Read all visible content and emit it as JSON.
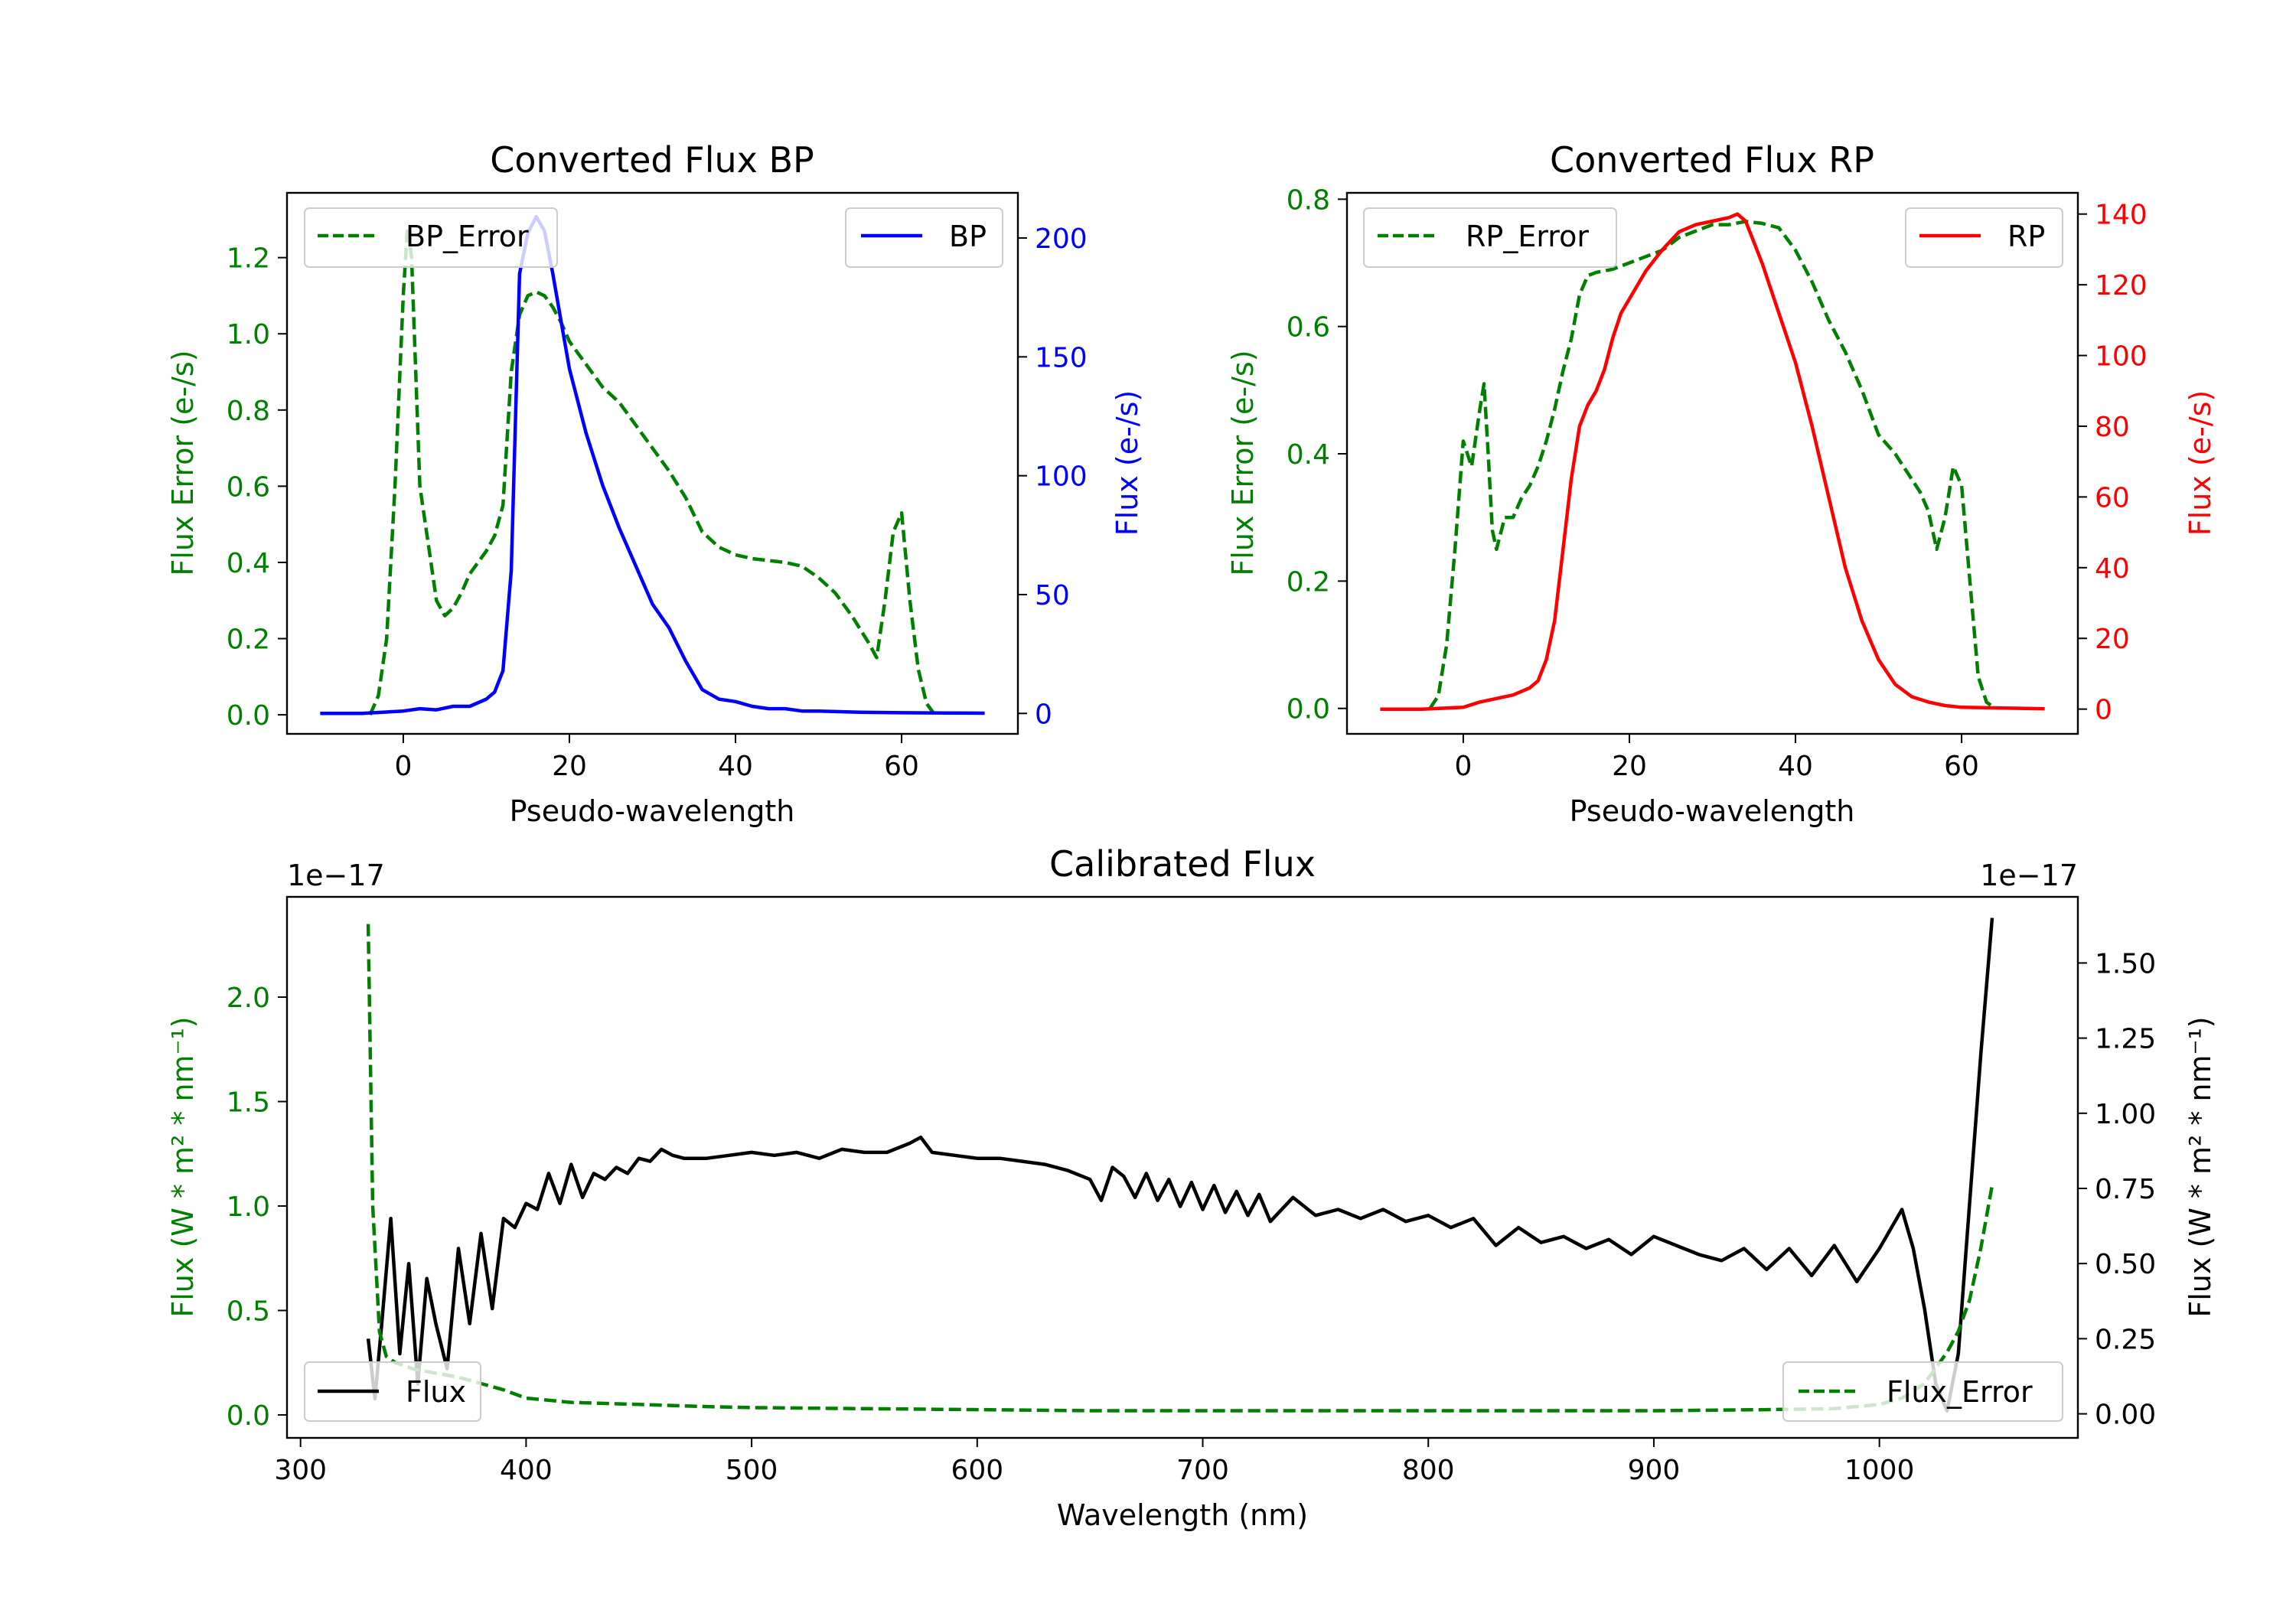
{
  "figure": {
    "colors": {
      "green": "#008000",
      "blue": "#0000ff",
      "red": "#ff0000",
      "black": "#000000"
    }
  },
  "chart_data": [
    {
      "id": "bp",
      "type": "line",
      "title": "Converted Flux BP",
      "xlabel": "Pseudo-wavelength",
      "ylabel_left": "Flux Error (e-/s)",
      "ylabel_right": "Flux (e-/s)",
      "xlim": [
        -14,
        74
      ],
      "ylim_left": [
        -0.05,
        1.37
      ],
      "ylim_right": [
        -8.6,
        219
      ],
      "xticks": [
        0,
        20,
        40,
        60
      ],
      "xtick_labels": [
        "0",
        "20",
        "40",
        "60"
      ],
      "yticks_left": [
        0.0,
        0.2,
        0.4,
        0.6,
        0.8,
        1.0,
        1.2
      ],
      "ytick_labels_left": [
        "0.0",
        "0.2",
        "0.4",
        "0.6",
        "0.8",
        "1.0",
        "1.2"
      ],
      "yticks_right": [
        0,
        50,
        100,
        150,
        200
      ],
      "ytick_labels_right": [
        "0",
        "50",
        "100",
        "150",
        "200"
      ],
      "series": [
        {
          "name": "BP_Error",
          "axis": "left",
          "color": "#008000",
          "style": "dashed",
          "x": [
            -4,
            -3,
            -2,
            -1,
            0,
            0.5,
            1,
            1.5,
            2,
            3,
            4,
            5,
            6,
            7,
            8,
            9,
            10,
            11,
            12,
            13,
            14,
            15,
            16,
            17,
            18,
            19,
            20,
            22,
            24,
            26,
            28,
            30,
            32,
            34,
            36,
            38,
            40,
            42,
            44,
            46,
            48,
            50,
            52,
            54,
            56,
            57,
            58,
            59,
            60,
            61,
            62,
            63,
            64
          ],
          "y": [
            0.0,
            0.05,
            0.2,
            0.6,
            1.1,
            1.28,
            1.2,
            0.9,
            0.6,
            0.45,
            0.3,
            0.26,
            0.28,
            0.32,
            0.37,
            0.4,
            0.43,
            0.47,
            0.55,
            0.9,
            1.05,
            1.1,
            1.11,
            1.1,
            1.07,
            1.03,
            0.98,
            0.92,
            0.86,
            0.82,
            0.76,
            0.7,
            0.64,
            0.57,
            0.48,
            0.44,
            0.42,
            0.41,
            0.405,
            0.4,
            0.39,
            0.36,
            0.32,
            0.26,
            0.19,
            0.15,
            0.3,
            0.48,
            0.53,
            0.3,
            0.12,
            0.03,
            0.0
          ]
        },
        {
          "name": "BP",
          "axis": "right",
          "color": "#0000ff",
          "style": "solid",
          "x": [
            -10,
            -5,
            0,
            2,
            4,
            6,
            8,
            10,
            11,
            12,
            13,
            14,
            15,
            16,
            17,
            18,
            19,
            20,
            22,
            24,
            26,
            28,
            30,
            32,
            34,
            36,
            38,
            40,
            42,
            44,
            46,
            48,
            50,
            55,
            60,
            65,
            70
          ],
          "y": [
            0,
            0,
            1,
            2,
            1.5,
            3,
            3,
            6,
            9,
            18,
            60,
            185,
            202,
            209,
            203,
            185,
            165,
            145,
            118,
            96,
            78,
            62,
            46,
            36,
            22,
            10,
            6,
            5,
            3,
            2,
            2,
            1,
            1,
            0.5,
            0.3,
            0.2,
            0.1
          ]
        }
      ],
      "legend": [
        {
          "label": "BP_Error",
          "placement": "upper-left"
        },
        {
          "label": "BP",
          "placement": "upper-right"
        }
      ]
    },
    {
      "id": "rp",
      "type": "line",
      "title": "Converted Flux RP",
      "xlabel": "Pseudo-wavelength",
      "ylabel_left": "Flux Error (e-/s)",
      "ylabel_right": "Flux (e-/s)",
      "xlim": [
        -14,
        74
      ],
      "ylim_left": [
        -0.04,
        0.81
      ],
      "ylim_right": [
        -7,
        146
      ],
      "xticks": [
        0,
        20,
        40,
        60
      ],
      "xtick_labels": [
        "0",
        "20",
        "40",
        "60"
      ],
      "yticks_left": [
        0.0,
        0.2,
        0.4,
        0.6,
        0.8
      ],
      "ytick_labels_left": [
        "0.0",
        "0.2",
        "0.4",
        "0.6",
        "0.8"
      ],
      "yticks_right": [
        0,
        20,
        40,
        60,
        80,
        100,
        120,
        140
      ],
      "ytick_labels_right": [
        "0",
        "20",
        "40",
        "60",
        "80",
        "100",
        "120",
        "140"
      ],
      "series": [
        {
          "name": "RP_Error",
          "axis": "left",
          "color": "#008000",
          "style": "dashed",
          "x": [
            -4,
            -3,
            -2,
            -1,
            0,
            1,
            2,
            2.5,
            3,
            3.5,
            4,
            5,
            6,
            7,
            8,
            9,
            10,
            11,
            12,
            13,
            14,
            15,
            16,
            18,
            20,
            22,
            24,
            26,
            28,
            30,
            32,
            34,
            36,
            38,
            40,
            42,
            44,
            46,
            48,
            50,
            52,
            54,
            55,
            56,
            57,
            58,
            59,
            60,
            61,
            62,
            63,
            64
          ],
          "y": [
            0.0,
            0.02,
            0.1,
            0.25,
            0.42,
            0.38,
            0.47,
            0.51,
            0.4,
            0.28,
            0.25,
            0.3,
            0.3,
            0.33,
            0.35,
            0.38,
            0.42,
            0.47,
            0.53,
            0.58,
            0.65,
            0.68,
            0.685,
            0.69,
            0.7,
            0.71,
            0.72,
            0.74,
            0.75,
            0.76,
            0.76,
            0.765,
            0.762,
            0.755,
            0.72,
            0.67,
            0.61,
            0.56,
            0.5,
            0.43,
            0.4,
            0.36,
            0.34,
            0.31,
            0.25,
            0.3,
            0.38,
            0.35,
            0.2,
            0.05,
            0.01,
            0.0
          ]
        },
        {
          "name": "RP",
          "axis": "right",
          "color": "#ff0000",
          "style": "solid",
          "x": [
            -10,
            -5,
            0,
            2,
            4,
            6,
            8,
            9,
            10,
            11,
            12,
            13,
            14,
            15,
            16,
            17,
            18,
            19,
            20,
            22,
            24,
            26,
            28,
            30,
            32,
            33,
            34,
            35,
            36,
            38,
            40,
            42,
            44,
            46,
            48,
            50,
            52,
            54,
            56,
            58,
            60,
            65,
            70
          ],
          "y": [
            0,
            0,
            0.5,
            2,
            3,
            4,
            6,
            8,
            14,
            25,
            45,
            65,
            80,
            86,
            90,
            96,
            105,
            112,
            116,
            124,
            130,
            135,
            137,
            138,
            139,
            140,
            138,
            132,
            126,
            112,
            98,
            80,
            60,
            40,
            25,
            14,
            7,
            3.5,
            2,
            1,
            0.5,
            0.3,
            0.1
          ]
        }
      ],
      "legend": [
        {
          "label": "RP_Error",
          "placement": "upper-left"
        },
        {
          "label": "RP",
          "placement": "upper-right"
        }
      ]
    },
    {
      "id": "cal",
      "type": "line",
      "title": "Calibrated Flux",
      "xlabel": "Wavelength (nm)",
      "ylabel_left": "Flux (W * m² * nm⁻¹)",
      "ylabel_right": "Flux (W * m² * nm⁻¹)",
      "offset_left": "1e−17",
      "offset_right": "1e−17",
      "xlim": [
        294,
        1088
      ],
      "ylim_left": [
        -0.11,
        2.48
      ],
      "ylim_right": [
        -0.08,
        1.72
      ],
      "xticks": [
        300,
        400,
        500,
        600,
        700,
        800,
        900,
        1000
      ],
      "xtick_labels": [
        "300",
        "400",
        "500",
        "600",
        "700",
        "800",
        "900",
        "1000"
      ],
      "yticks_left": [
        0.0,
        0.5,
        1.0,
        1.5,
        2.0
      ],
      "ytick_labels_left": [
        "0.0",
        "0.5",
        "1.0",
        "1.5",
        "2.0"
      ],
      "yticks_right": [
        0.0,
        0.25,
        0.5,
        0.75,
        1.0,
        1.25,
        1.5
      ],
      "ytick_labels_right": [
        "0.00",
        "0.25",
        "0.50",
        "0.75",
        "1.00",
        "1.25",
        "1.50"
      ],
      "series": [
        {
          "name": "Flux",
          "axis": "right",
          "color": "#000000",
          "style": "solid",
          "x": [
            330,
            333,
            336,
            340,
            344,
            348,
            352,
            356,
            360,
            365,
            370,
            375,
            380,
            385,
            390,
            395,
            400,
            405,
            410,
            415,
            420,
            425,
            430,
            435,
            440,
            445,
            450,
            455,
            460,
            465,
            470,
            480,
            490,
            500,
            510,
            520,
            530,
            540,
            550,
            560,
            570,
            575,
            580,
            590,
            600,
            610,
            620,
            630,
            640,
            650,
            655,
            660,
            665,
            670,
            675,
            680,
            685,
            690,
            695,
            700,
            705,
            710,
            715,
            720,
            725,
            730,
            740,
            750,
            760,
            770,
            780,
            790,
            800,
            810,
            820,
            830,
            840,
            850,
            860,
            870,
            880,
            890,
            900,
            910,
            920,
            930,
            940,
            950,
            960,
            970,
            980,
            990,
            1000,
            1010,
            1015,
            1020,
            1025,
            1030,
            1035,
            1040,
            1045,
            1050
          ],
          "y": [
            0.25,
            0.05,
            0.3,
            0.65,
            0.2,
            0.5,
            0.1,
            0.45,
            0.3,
            0.15,
            0.55,
            0.3,
            0.6,
            0.35,
            0.65,
            0.62,
            0.7,
            0.68,
            0.8,
            0.7,
            0.83,
            0.72,
            0.8,
            0.78,
            0.82,
            0.8,
            0.85,
            0.84,
            0.88,
            0.86,
            0.85,
            0.85,
            0.86,
            0.87,
            0.86,
            0.87,
            0.85,
            0.88,
            0.87,
            0.87,
            0.9,
            0.92,
            0.87,
            0.86,
            0.85,
            0.85,
            0.84,
            0.83,
            0.81,
            0.78,
            0.71,
            0.82,
            0.79,
            0.72,
            0.8,
            0.71,
            0.78,
            0.69,
            0.77,
            0.68,
            0.76,
            0.67,
            0.74,
            0.66,
            0.73,
            0.64,
            0.72,
            0.66,
            0.68,
            0.65,
            0.68,
            0.64,
            0.66,
            0.62,
            0.65,
            0.56,
            0.62,
            0.57,
            0.59,
            0.55,
            0.58,
            0.53,
            0.59,
            0.56,
            0.53,
            0.51,
            0.55,
            0.48,
            0.55,
            0.46,
            0.56,
            0.44,
            0.55,
            0.68,
            0.55,
            0.35,
            0.1,
            0.01,
            0.2,
            0.7,
            1.2,
            1.65
          ]
        },
        {
          "name": "Flux_Error",
          "axis": "left",
          "color": "#008000",
          "style": "dashed",
          "x": [
            330,
            332,
            335,
            338,
            342,
            350,
            360,
            370,
            380,
            390,
            400,
            420,
            450,
            480,
            500,
            550,
            600,
            650,
            700,
            750,
            800,
            850,
            900,
            950,
            980,
            1000,
            1010,
            1020,
            1030,
            1035,
            1040,
            1045,
            1050
          ],
          "y": [
            2.35,
            1.0,
            0.4,
            0.28,
            0.25,
            0.22,
            0.2,
            0.18,
            0.15,
            0.12,
            0.08,
            0.06,
            0.05,
            0.04,
            0.035,
            0.03,
            0.025,
            0.02,
            0.02,
            0.02,
            0.02,
            0.02,
            0.02,
            0.025,
            0.03,
            0.05,
            0.08,
            0.15,
            0.3,
            0.4,
            0.55,
            0.8,
            1.1
          ]
        }
      ],
      "legend": [
        {
          "label": "Flux",
          "placement": "lower-left"
        },
        {
          "label": "Flux_Error",
          "placement": "lower-right"
        }
      ]
    }
  ]
}
